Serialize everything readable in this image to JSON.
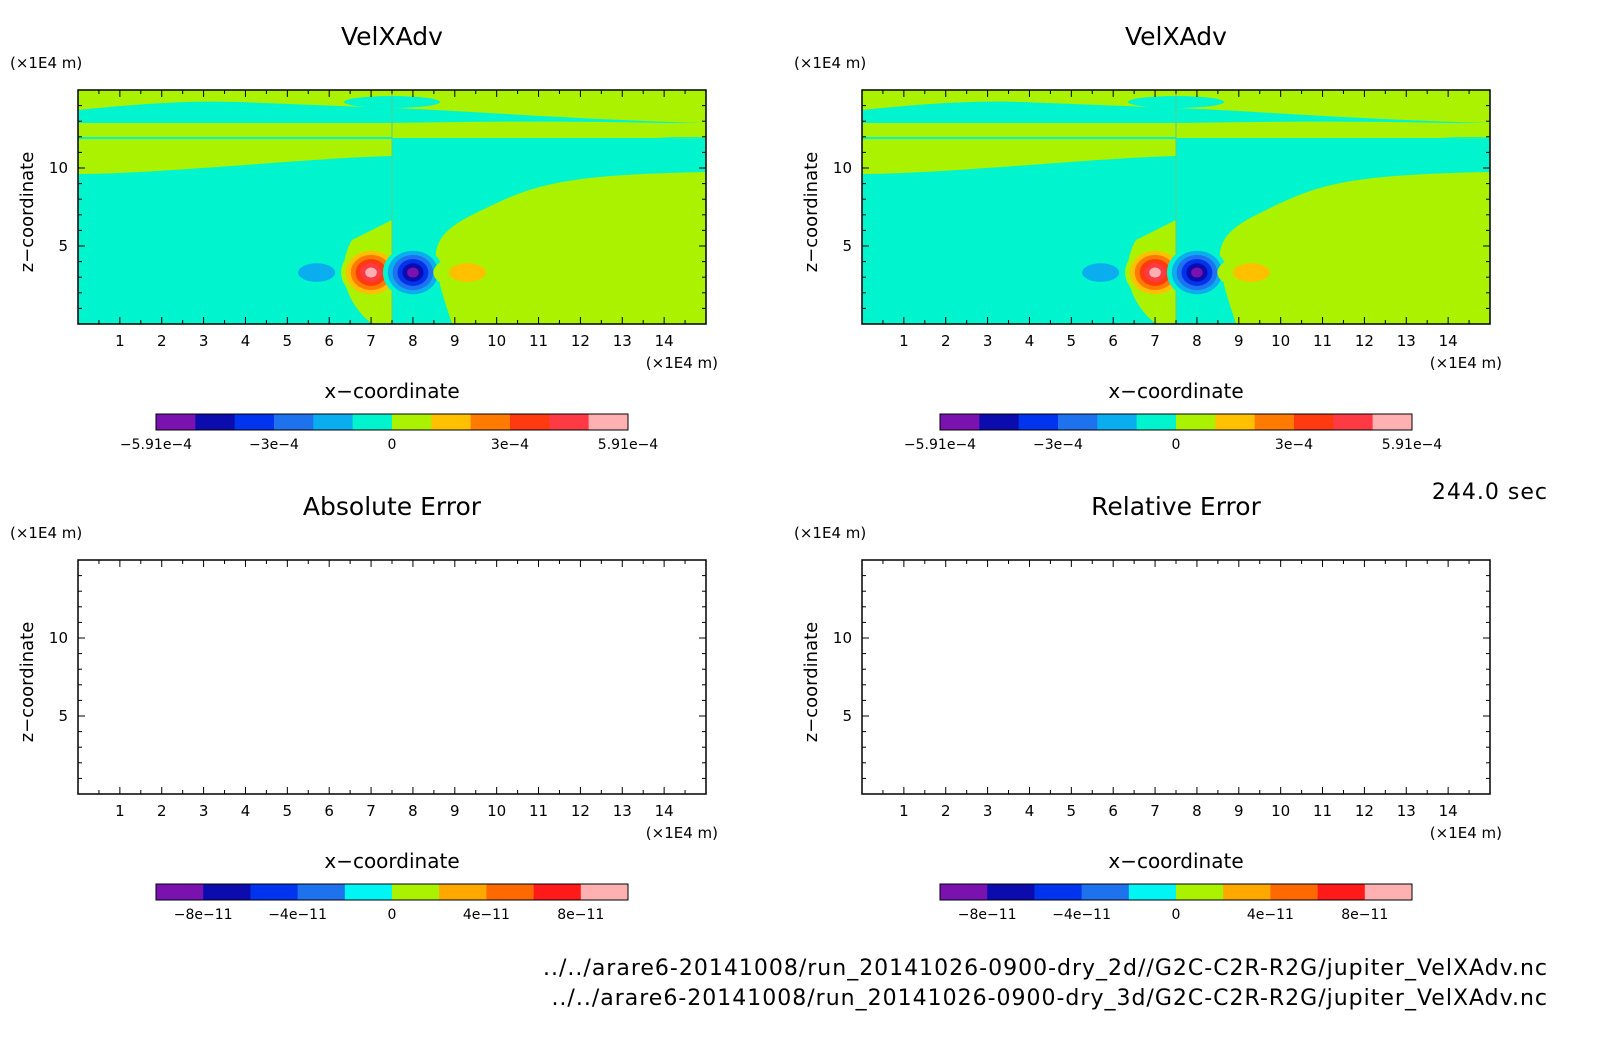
{
  "chart_data": [
    {
      "type": "heatmap",
      "title": "VelXAdv",
      "xlabel": "x−coordinate",
      "ylabel": "z−coordinate",
      "x_unit": "(×1E4 m)",
      "y_unit": "(×1E4 m)",
      "xlim": [
        0,
        15
      ],
      "ylim": [
        0,
        15
      ],
      "x_ticks": [
        "1",
        "2",
        "3",
        "4",
        "5",
        "6",
        "7",
        "8",
        "9",
        "10",
        "11",
        "12",
        "13",
        "14"
      ],
      "y_ticks": [
        "5",
        "10"
      ],
      "colorbar": {
        "colors": [
          "#7a12b0",
          "#0c0cae",
          "#0033ee",
          "#1f72ee",
          "#0aaeee",
          "#00f5cf",
          "#aaf200",
          "#ffc000",
          "#ff7a00",
          "#ff3a10",
          "#ff3a44",
          "#ffb0b0"
        ],
        "tick_labels": [
          "−5.91e−4",
          "−3e−4",
          "0",
          "3e−4",
          "5.91e−4"
        ]
      },
      "features": [
        {
          "x": 5.7,
          "z": 3.3,
          "value": -0.00016
        },
        {
          "x": 7.0,
          "z": 3.3,
          "value": 0.000591
        },
        {
          "x": 8.0,
          "z": 3.3,
          "value": -0.000591
        },
        {
          "x": 9.3,
          "z": 3.3,
          "value": 0.00016
        }
      ]
    },
    {
      "type": "heatmap",
      "title": "VelXAdv",
      "xlabel": "x−coordinate",
      "ylabel": "z−coordinate",
      "x_unit": "(×1E4 m)",
      "y_unit": "(×1E4 m)",
      "xlim": [
        0,
        15
      ],
      "ylim": [
        0,
        15
      ],
      "x_ticks": [
        "1",
        "2",
        "3",
        "4",
        "5",
        "6",
        "7",
        "8",
        "9",
        "10",
        "11",
        "12",
        "13",
        "14"
      ],
      "y_ticks": [
        "5",
        "10"
      ],
      "colorbar": {
        "colors": [
          "#7a12b0",
          "#0c0cae",
          "#0033ee",
          "#1f72ee",
          "#0aaeee",
          "#00f5cf",
          "#aaf200",
          "#ffc000",
          "#ff7a00",
          "#ff3a10",
          "#ff3a44",
          "#ffb0b0"
        ],
        "tick_labels": [
          "−5.91e−4",
          "−3e−4",
          "0",
          "3e−4",
          "5.91e−4"
        ]
      },
      "features": [
        {
          "x": 5.7,
          "z": 3.3,
          "value": -0.00016
        },
        {
          "x": 7.0,
          "z": 3.3,
          "value": 0.000591
        },
        {
          "x": 8.0,
          "z": 3.3,
          "value": -0.000591
        },
        {
          "x": 9.3,
          "z": 3.3,
          "value": 0.00016
        }
      ]
    },
    {
      "type": "heatmap",
      "title": "Absolute Error",
      "xlabel": "x−coordinate",
      "ylabel": "z−coordinate",
      "x_unit": "(×1E4 m)",
      "y_unit": "(×1E4 m)",
      "xlim": [
        0,
        15
      ],
      "ylim": [
        0,
        15
      ],
      "x_ticks": [
        "1",
        "2",
        "3",
        "4",
        "5",
        "6",
        "7",
        "8",
        "9",
        "10",
        "11",
        "12",
        "13",
        "14"
      ],
      "y_ticks": [
        "5",
        "10"
      ],
      "colorbar": {
        "colors": [
          "#7a12b0",
          "#0c0cae",
          "#0033ee",
          "#1f72ee",
          "#00f5f5",
          "#aaf200",
          "#ffa800",
          "#ff6a00",
          "#ff1a1a",
          "#ffb0b0"
        ],
        "tick_labels": [
          "−8e−11",
          "−4e−11",
          "0",
          "4e−11",
          "8e−11"
        ]
      },
      "features": []
    },
    {
      "type": "heatmap",
      "title": "Relative Error",
      "xlabel": "x−coordinate",
      "ylabel": "z−coordinate",
      "x_unit": "(×1E4 m)",
      "y_unit": "(×1E4 m)",
      "xlim": [
        0,
        15
      ],
      "ylim": [
        0,
        15
      ],
      "x_ticks": [
        "1",
        "2",
        "3",
        "4",
        "5",
        "6",
        "7",
        "8",
        "9",
        "10",
        "11",
        "12",
        "13",
        "14"
      ],
      "y_ticks": [
        "5",
        "10"
      ],
      "colorbar": {
        "colors": [
          "#7a12b0",
          "#0c0cae",
          "#0033ee",
          "#1f72ee",
          "#00f5f5",
          "#aaf200",
          "#ffa800",
          "#ff6a00",
          "#ff1a1a",
          "#ffb0b0"
        ],
        "tick_labels": [
          "−8e−11",
          "−4e−11",
          "0",
          "4e−11",
          "8e−11"
        ]
      },
      "features": []
    }
  ],
  "time_label": "244.0 sec",
  "footer": {
    "file1": "../../arare6-20141008/run_20141026-0900-dry_2d//G2C-C2R-R2G/jupiter_VelXAdv.nc",
    "file2": "../../arare6-20141008/run_20141026-0900-dry_3d/G2C-C2R-R2G/jupiter_VelXAdv.nc"
  },
  "colors": {
    "cyan": "#00f5cf",
    "green": "#aaf200"
  }
}
